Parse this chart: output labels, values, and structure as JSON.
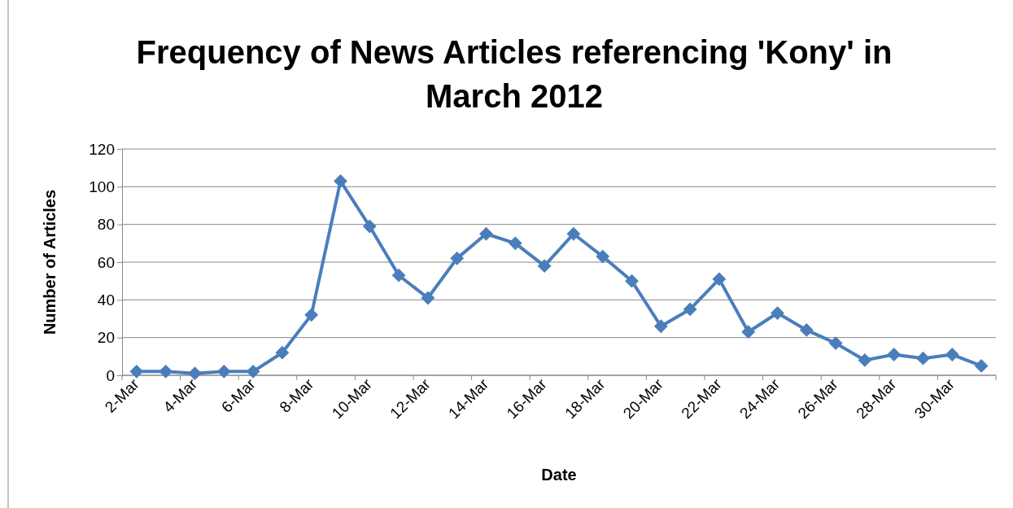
{
  "chart_data": {
    "type": "line",
    "title": "Frequency of News Articles referencing 'Kony' in March 2012",
    "xlabel": "Date",
    "ylabel": "Number of Articles",
    "categories": [
      "2-Mar",
      null,
      "4-Mar",
      null,
      "6-Mar",
      null,
      "8-Mar",
      null,
      "10-Mar",
      null,
      "12-Mar",
      null,
      "14-Mar",
      null,
      "16-Mar",
      null,
      "18-Mar",
      null,
      "20-Mar",
      null,
      "22-Mar",
      null,
      "24-Mar",
      null,
      "26-Mar",
      null,
      "28-Mar",
      null,
      "30-Mar",
      null
    ],
    "series": [
      {
        "color": "#4a7ebb",
        "values": [
          2,
          2,
          1,
          2,
          2,
          12,
          32,
          103,
          79,
          53,
          41,
          62,
          75,
          70,
          58,
          75,
          63,
          50,
          26,
          35,
          51,
          23,
          33,
          24,
          17,
          8,
          11,
          9,
          11,
          5
        ]
      }
    ],
    "ylim": [
      0,
      120
    ],
    "yticks": [
      0,
      20,
      40,
      60,
      80,
      100,
      120
    ],
    "grid": "y",
    "marker": "diamond",
    "line_style": "solid"
  }
}
